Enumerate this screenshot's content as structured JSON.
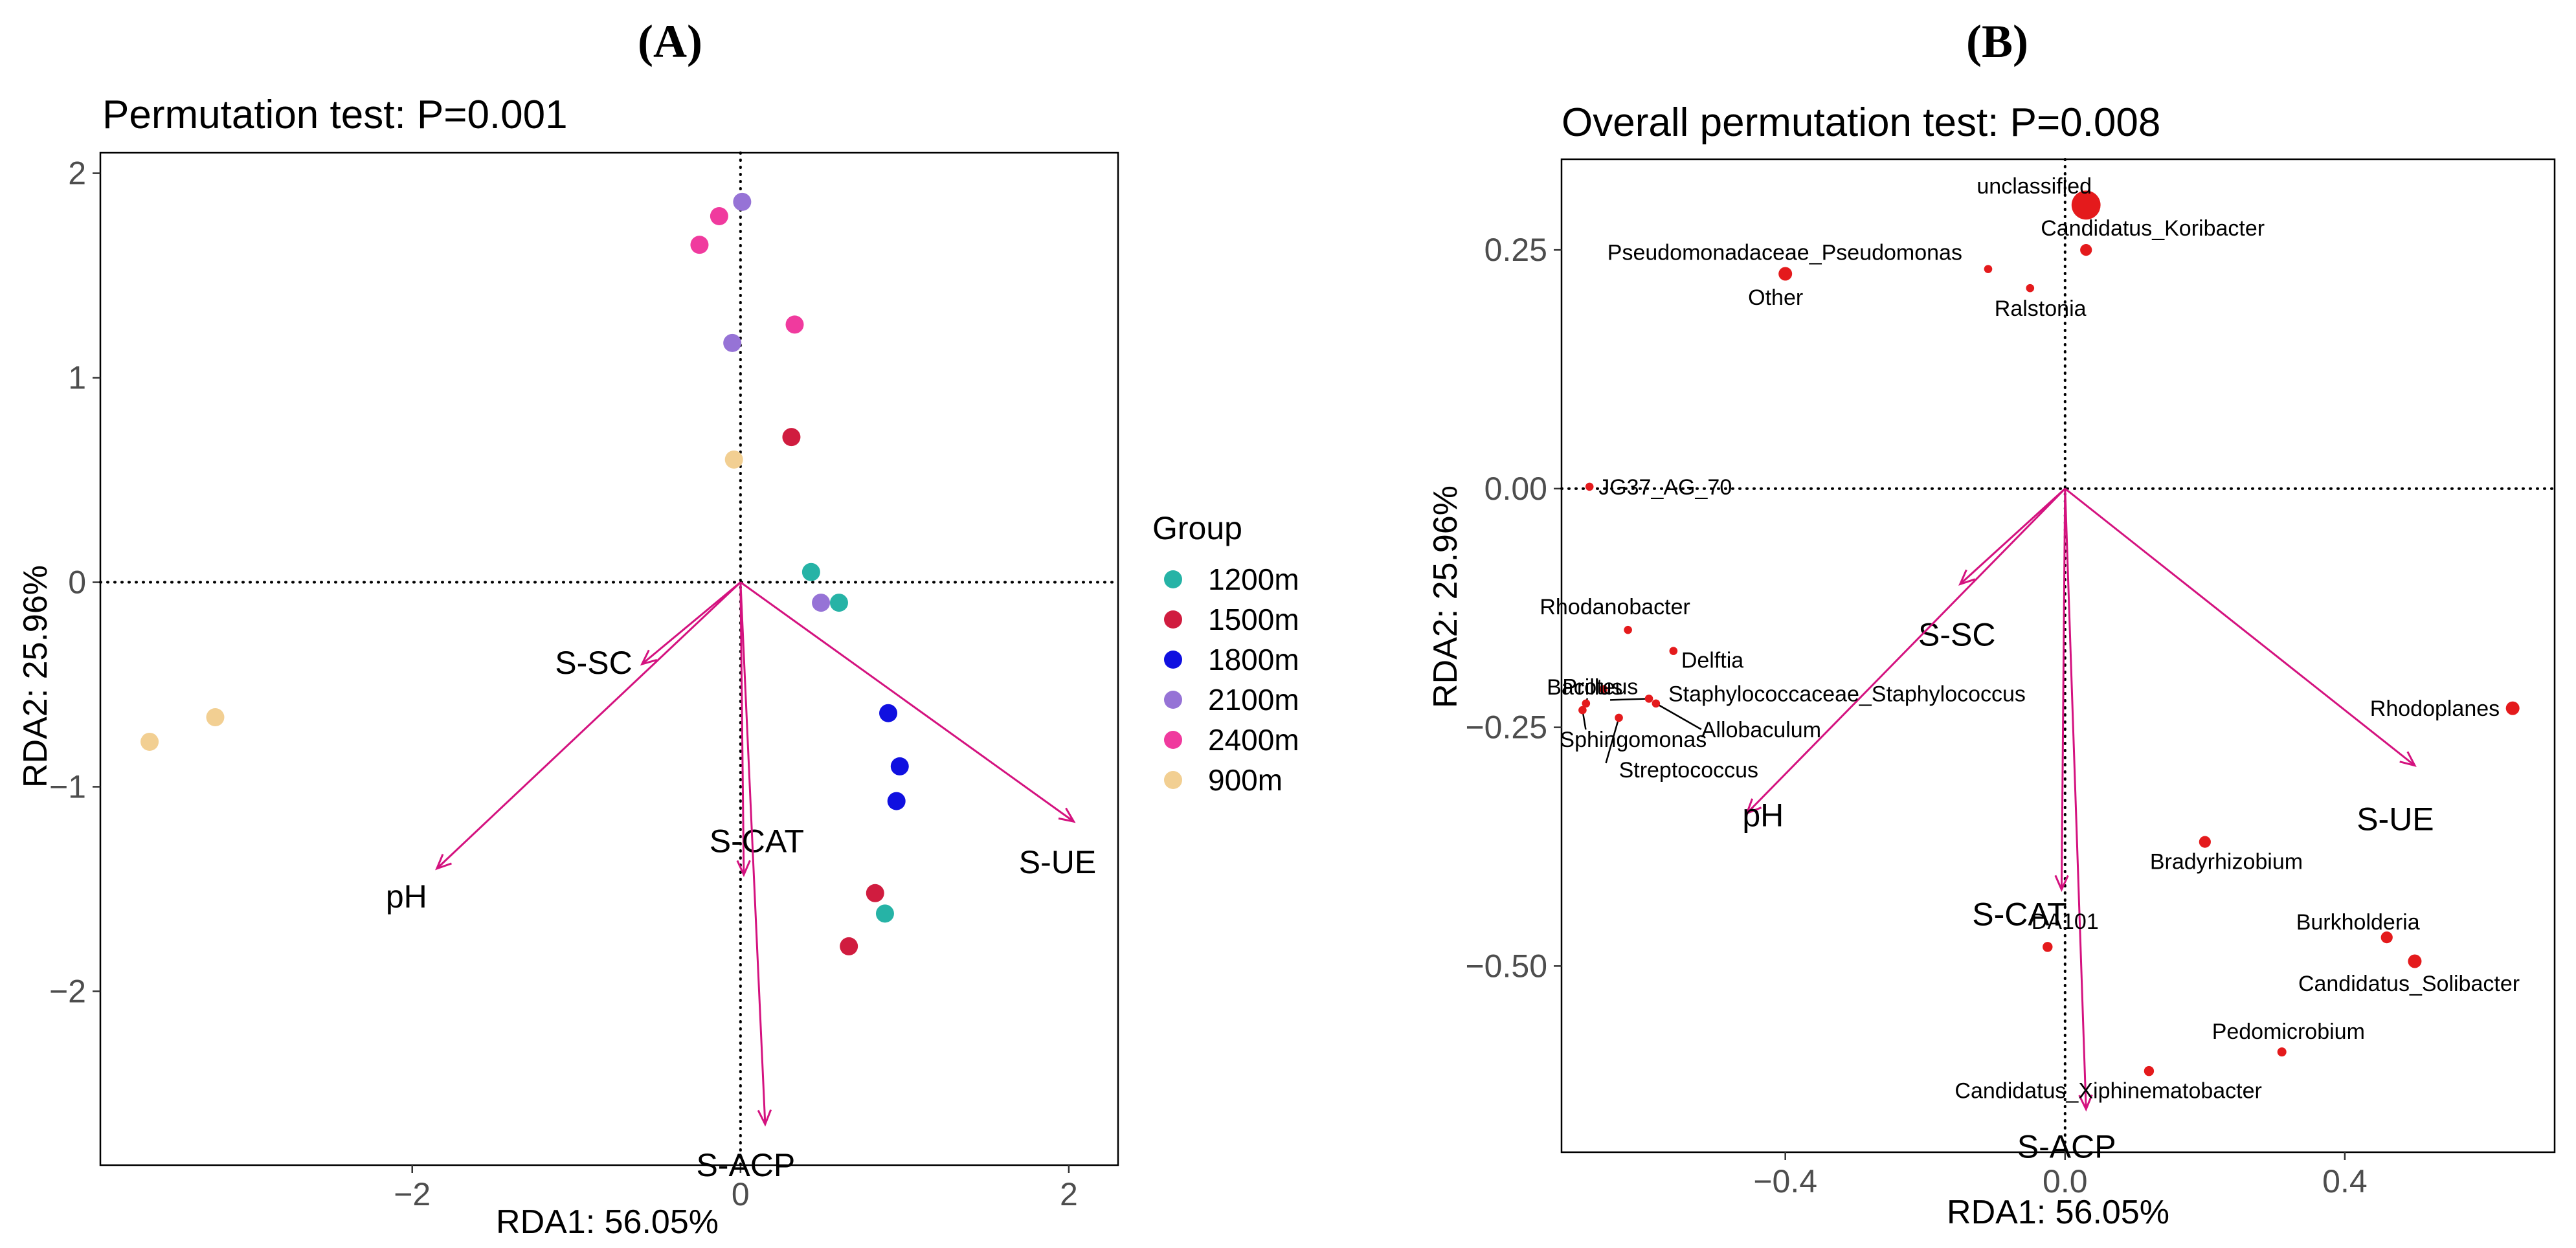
{
  "panels": [
    {
      "letter": "(A)",
      "title": "Permutation test: P=0.001",
      "xlabel": "RDA1: 56.05%",
      "ylabel": "RDA2: 25.96%"
    },
    {
      "letter": "(B)",
      "title": "Overall permutation test: P=0.008",
      "xlabel": "RDA1: 56.05%",
      "ylabel": "RDA2: 25.96%"
    }
  ],
  "legend": {
    "title": "Group",
    "items": [
      {
        "label": "1200m",
        "color": "#26b3a6"
      },
      {
        "label": "1500m",
        "color": "#d01c3f"
      },
      {
        "label": "1800m",
        "color": "#1010e0"
      },
      {
        "label": "2100m",
        "color": "#9673d6"
      },
      {
        "label": "2400m",
        "color": "#f03a9e"
      },
      {
        "label": "900m",
        "color": "#f2cf92"
      }
    ]
  },
  "chart_data": [
    {
      "type": "scatter",
      "title": "Permutation test: P=0.001",
      "xlabel": "RDA1: 56.05%",
      "ylabel": "RDA2: 25.96%",
      "xlim": [
        -3.9,
        2.3
      ],
      "ylim": [
        -2.85,
        2.1
      ],
      "xticks": [
        -2,
        0,
        2
      ],
      "xtick_labels": [
        "−2",
        "0",
        "2"
      ],
      "yticks": [
        -2,
        -1,
        0,
        1,
        2
      ],
      "ytick_labels": [
        "−2",
        "−1",
        "0",
        "1",
        "2"
      ],
      "arrow_color": "#d4127f",
      "series": [
        {
          "name": "1200m",
          "color": "#26b3a6",
          "points": [
            [
              0.43,
              0.05
            ],
            [
              0.6,
              -0.1
            ],
            [
              0.88,
              -1.62
            ]
          ]
        },
        {
          "name": "1500m",
          "color": "#d01c3f",
          "points": [
            [
              0.31,
              0.71
            ],
            [
              0.82,
              -1.52
            ],
            [
              0.66,
              -1.78
            ]
          ]
        },
        {
          "name": "1800m",
          "color": "#1010e0",
          "points": [
            [
              0.9,
              -0.64
            ],
            [
              0.97,
              -0.9
            ],
            [
              0.95,
              -1.07
            ]
          ]
        },
        {
          "name": "2100m",
          "color": "#9673d6",
          "points": [
            [
              0.01,
              1.86
            ],
            [
              -0.05,
              1.17
            ],
            [
              0.49,
              -0.1
            ]
          ]
        },
        {
          "name": "2400m",
          "color": "#f03a9e",
          "points": [
            [
              -0.13,
              1.79
            ],
            [
              -0.25,
              1.65
            ],
            [
              0.33,
              1.26
            ]
          ]
        },
        {
          "name": "900m",
          "color": "#f2cf92",
          "points": [
            [
              -0.04,
              0.6
            ],
            [
              -3.2,
              -0.66
            ],
            [
              -3.6,
              -0.78
            ]
          ]
        }
      ],
      "vectors": [
        {
          "name": "S-SC",
          "x": -0.6,
          "y": -0.4
        },
        {
          "name": "pH",
          "x": -1.85,
          "y": -1.4
        },
        {
          "name": "S-CAT",
          "x": 0.02,
          "y": -1.43
        },
        {
          "name": "S-ACP",
          "x": 0.15,
          "y": -2.65
        },
        {
          "name": "S-UE",
          "x": 2.03,
          "y": -1.17
        }
      ]
    },
    {
      "type": "scatter",
      "title": "Overall permutation test: P=0.008",
      "xlabel": "RDA1: 56.05%",
      "ylabel": "RDA2: 25.96%",
      "xlim": [
        -0.72,
        0.7
      ],
      "ylim": [
        -0.695,
        0.345
      ],
      "xticks": [
        -0.4,
        0.0,
        0.4
      ],
      "xtick_labels": [
        "−0.4",
        "0.0",
        "0.4"
      ],
      "yticks": [
        -0.5,
        -0.25,
        0.0,
        0.25
      ],
      "ytick_labels": [
        "−0.50",
        "−0.25",
        "0.00",
        "0.25"
      ],
      "arrow_color": "#d4127f",
      "point_color": "#e41a1c",
      "points": [
        {
          "name": "unclassified",
          "x": 0.03,
          "y": 0.297,
          "size": 3.2
        },
        {
          "name": "Candidatus_Koribacter",
          "x": 0.03,
          "y": 0.25,
          "size": 1.3
        },
        {
          "name": "Pseudomonadaceae_Pseudomonas",
          "x": -0.11,
          "y": 0.23,
          "size": 0.9
        },
        {
          "name": "Other",
          "x": -0.4,
          "y": 0.225,
          "size": 1.5
        },
        {
          "name": "Ralstonia",
          "x": -0.05,
          "y": 0.21,
          "size": 0.9
        },
        {
          "name": "JG37_AG_70",
          "x": -0.68,
          "y": 0.002,
          "size": 0.9
        },
        {
          "name": "Rhodanobacter",
          "x": -0.625,
          "y": -0.148,
          "size": 0.9
        },
        {
          "name": "Proteus",
          "x": -0.66,
          "y": -0.21,
          "size": 0.9
        },
        {
          "name": "Delftia",
          "x": -0.56,
          "y": -0.17,
          "size": 0.9
        },
        {
          "name": "Bacillus",
          "x": -0.685,
          "y": -0.225,
          "size": 0.9
        },
        {
          "name": "Staphylococcaceae_Staphylococcus",
          "x": -0.595,
          "y": -0.22,
          "size": 0.9
        },
        {
          "name": "Allobaculum",
          "x": -0.585,
          "y": -0.225,
          "size": 0.9
        },
        {
          "name": "Sphingomonas",
          "x": -0.69,
          "y": -0.232,
          "size": 0.9
        },
        {
          "name": "Streptococcus",
          "x": -0.638,
          "y": -0.24,
          "size": 0.9
        },
        {
          "name": "Rhodoplanes",
          "x": 0.64,
          "y": -0.23,
          "size": 1.5
        },
        {
          "name": "Bradyrhizobium",
          "x": 0.2,
          "y": -0.37,
          "size": 1.3
        },
        {
          "name": "DA101",
          "x": -0.025,
          "y": -0.48,
          "size": 1.1
        },
        {
          "name": "Burkholderia",
          "x": 0.46,
          "y": -0.47,
          "size": 1.3
        },
        {
          "name": "Candidatus_Solibacter",
          "x": 0.5,
          "y": -0.495,
          "size": 1.5
        },
        {
          "name": "Pedomicrobium",
          "x": 0.31,
          "y": -0.59,
          "size": 1.0
        },
        {
          "name": "Candidatus_Xiphinematobacter",
          "x": 0.12,
          "y": -0.61,
          "size": 1.1
        }
      ],
      "vectors": [
        {
          "name": "S-SC",
          "x": -0.15,
          "y": -0.1
        },
        {
          "name": "pH",
          "x": -0.455,
          "y": -0.34
        },
        {
          "name": "S-CAT",
          "x": -0.005,
          "y": -0.42
        },
        {
          "name": "S-ACP",
          "x": 0.03,
          "y": -0.65
        },
        {
          "name": "S-UE",
          "x": 0.5,
          "y": -0.29
        }
      ]
    }
  ]
}
